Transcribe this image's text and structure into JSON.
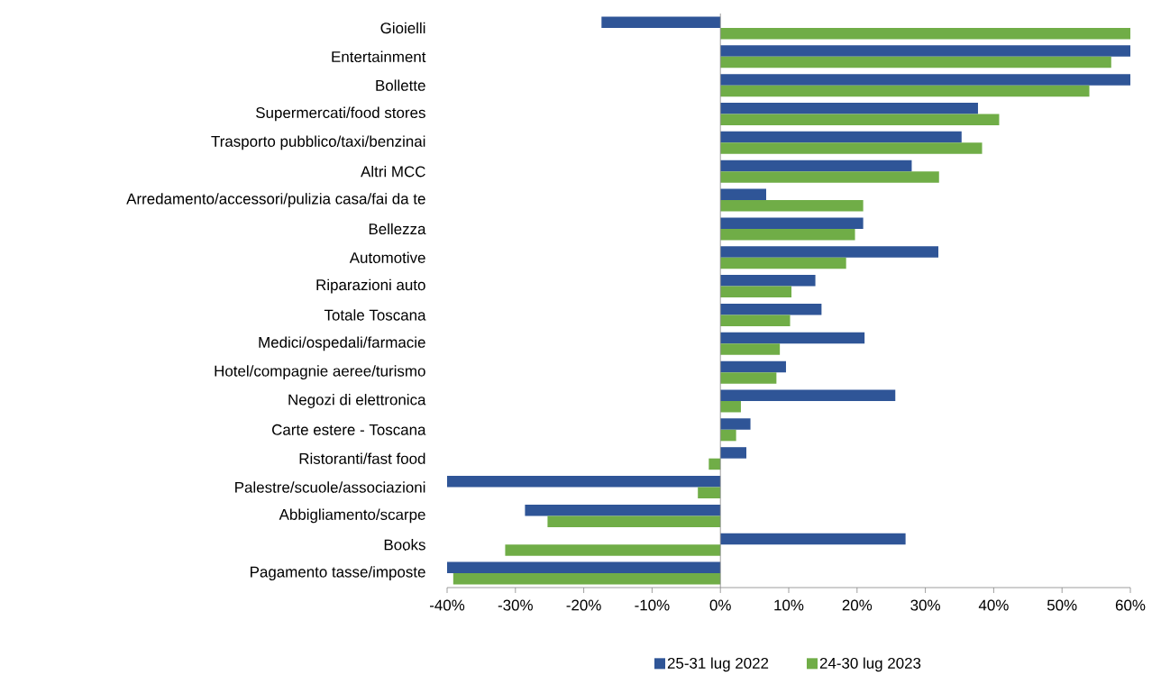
{
  "chart_data": {
    "type": "bar",
    "orientation": "horizontal",
    "categories": [
      "Gioielli",
      "Entertainment",
      "Bollette",
      "Supermercati/food stores",
      "Trasporto pubblico/taxi/benzinai",
      "Altri MCC",
      "Arredamento/accessori/pulizia casa/fai da te",
      "Bellezza",
      "Automotive",
      "Riparazioni auto",
      "Totale Toscana",
      "Medici/ospedali/farmacie",
      "Hotel/compagnie aeree/turismo",
      "Negozi di elettronica",
      "Carte estere  - Toscana",
      "Ristoranti/fast food",
      "Palestre/scuole/associazioni",
      "Abbigliamento/scarpe",
      "Books",
      "Pagamento tasse/imposte"
    ],
    "series": [
      {
        "name": "25-31 lug 2022",
        "color": "#2f5597",
        "values": [
          -17.4,
          60,
          60,
          37.7,
          35.3,
          28.0,
          6.7,
          20.9,
          31.9,
          13.9,
          14.8,
          21.1,
          9.6,
          25.6,
          4.4,
          3.8,
          -40,
          -28.6,
          27.1,
          -40
        ]
      },
      {
        "name": "24-30 lug 2023",
        "color": "#70ad47",
        "values": [
          60,
          57.2,
          54.0,
          40.8,
          38.3,
          32.0,
          20.9,
          19.7,
          18.4,
          10.4,
          10.2,
          8.7,
          8.2,
          3.0,
          2.3,
          -1.7,
          -3.3,
          -25.3,
          -31.5,
          -39.1
        ]
      }
    ],
    "xlim": [
      -40,
      60
    ],
    "xticks": [
      {
        "value": -40,
        "label": "-40%"
      },
      {
        "value": -30,
        "label": "-30%"
      },
      {
        "value": -20,
        "label": "-20%"
      },
      {
        "value": -10,
        "label": "-10%"
      },
      {
        "value": 0,
        "label": "0%"
      },
      {
        "value": 10,
        "label": "10%"
      },
      {
        "value": 20,
        "label": "20%"
      },
      {
        "value": 30,
        "label": "30%"
      },
      {
        "value": 40,
        "label": "40%"
      },
      {
        "value": 50,
        "label": "50%"
      },
      {
        "value": 60,
        "label": "60%"
      }
    ],
    "legend": "bottom"
  }
}
